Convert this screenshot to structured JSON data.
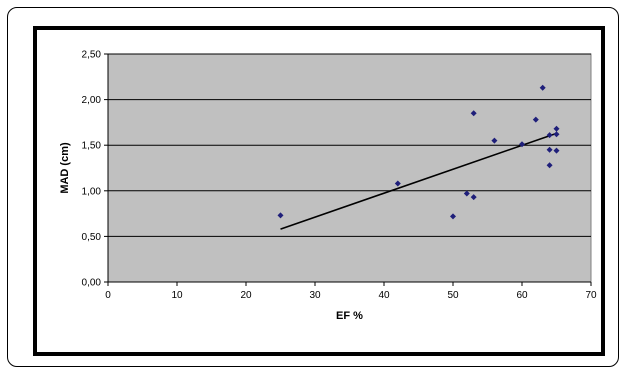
{
  "chart_data": {
    "type": "scatter",
    "xlabel": "EF %",
    "ylabel": "MAD (cm)",
    "xlim": [
      0,
      70
    ],
    "ylim": [
      0,
      2.5
    ],
    "x_ticks": [
      "0",
      "10",
      "20",
      "30",
      "40",
      "50",
      "60",
      "70"
    ],
    "y_ticks": [
      "0,00",
      "0,50",
      "1,00",
      "1,50",
      "2,00",
      "2,50"
    ],
    "grid": "horizontal",
    "plot_background": "#c0c0c0",
    "point_color": "#1f1f7a",
    "trendline_color": "#000000",
    "points": [
      {
        "x": 25,
        "y": 0.73
      },
      {
        "x": 42,
        "y": 1.08
      },
      {
        "x": 50,
        "y": 0.72
      },
      {
        "x": 52,
        "y": 0.97
      },
      {
        "x": 53,
        "y": 0.93
      },
      {
        "x": 53,
        "y": 1.85
      },
      {
        "x": 56,
        "y": 1.55
      },
      {
        "x": 60,
        "y": 1.51
      },
      {
        "x": 62,
        "y": 1.78
      },
      {
        "x": 63,
        "y": 2.13
      },
      {
        "x": 64,
        "y": 1.61
      },
      {
        "x": 64,
        "y": 1.45
      },
      {
        "x": 64,
        "y": 1.28
      },
      {
        "x": 65,
        "y": 1.68
      },
      {
        "x": 65,
        "y": 1.62
      },
      {
        "x": 65,
        "y": 1.44
      }
    ],
    "trendline": {
      "x_start": 25,
      "y_start": 0.58,
      "x_end": 65,
      "y_end": 1.63
    }
  }
}
